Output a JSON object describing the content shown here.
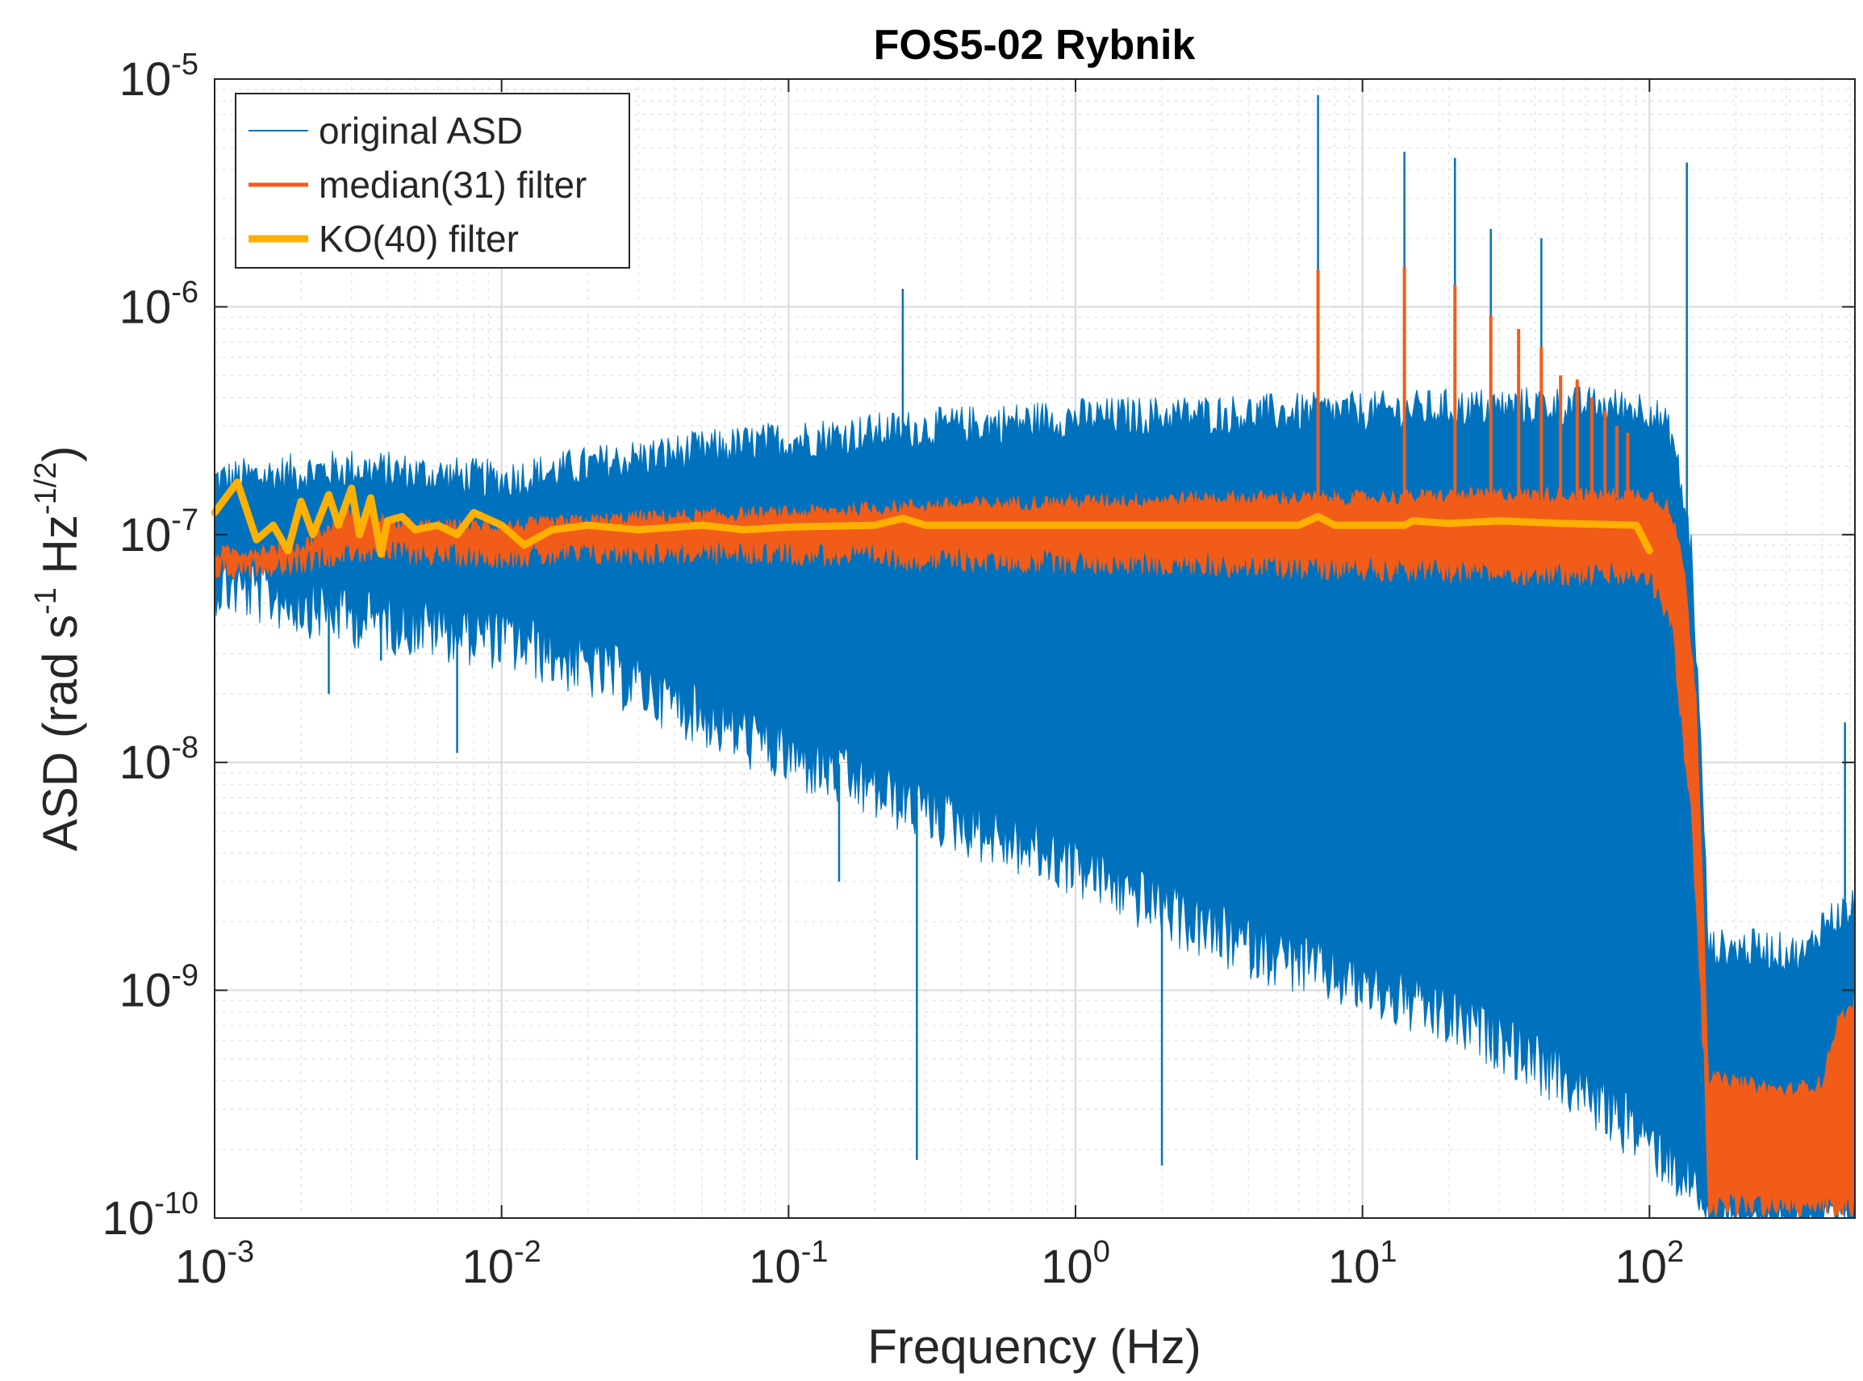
{
  "chart_data": {
    "type": "line",
    "title": "FOS5-02 Rybnik",
    "xlabel": "Frequency (Hz)",
    "ylabel": {
      "prefix": "ASD (rad s",
      "exp1": "-1",
      "mid": " Hz",
      "exp2": "-1/2",
      "suffix": ")"
    },
    "x_scale": "log",
    "y_scale": "log",
    "xlim": [
      0.001,
      520
    ],
    "ylim": [
      1e-10,
      1e-05
    ],
    "grid": true,
    "legend_position": "top-left",
    "x_ticks": [
      {
        "value": 0.001,
        "base": "10",
        "exp": "-3"
      },
      {
        "value": 0.01,
        "base": "10",
        "exp": "-2"
      },
      {
        "value": 0.1,
        "base": "10",
        "exp": "-1"
      },
      {
        "value": 1,
        "base": "10",
        "exp": "0"
      },
      {
        "value": 10,
        "base": "10",
        "exp": "1"
      },
      {
        "value": 100,
        "base": "10",
        "exp": "2"
      }
    ],
    "y_ticks": [
      {
        "value": 1e-10,
        "base": "10",
        "exp": "-10"
      },
      {
        "value": 1e-09,
        "base": "10",
        "exp": "-9"
      },
      {
        "value": 1e-08,
        "base": "10",
        "exp": "-8"
      },
      {
        "value": 1e-07,
        "base": "10",
        "exp": "-7"
      },
      {
        "value": 1e-06,
        "base": "10",
        "exp": "-6"
      },
      {
        "value": 1e-05,
        "base": "10",
        "exp": "-5"
      }
    ],
    "series": [
      {
        "name": "original ASD",
        "color": "#0072BD",
        "style": "band",
        "upper": [
          [
            0.001,
            1.6e-07
          ],
          [
            0.003,
            1.8e-07
          ],
          [
            0.01,
            1.6e-07
          ],
          [
            0.03,
            2e-07
          ],
          [
            0.1,
            2.4e-07
          ],
          [
            0.3,
            2.7e-07
          ],
          [
            1,
            3e-07
          ],
          [
            3,
            3.1e-07
          ],
          [
            10,
            3.2e-07
          ],
          [
            50,
            3.4e-07
          ],
          [
            100,
            3.3e-07
          ],
          [
            120,
            2.5e-07
          ],
          [
            140,
            8e-08
          ],
          [
            155,
            5e-09
          ],
          [
            160,
            1.4e-09
          ],
          [
            250,
            1.4e-09
          ],
          [
            350,
            1.3e-09
          ],
          [
            400,
            1.8e-09
          ],
          [
            520,
            2.1e-09
          ]
        ],
        "lower": [
          [
            0.001,
            7e-08
          ],
          [
            0.003,
            5e-08
          ],
          [
            0.01,
            4e-08
          ],
          [
            0.03,
            2.5e-08
          ],
          [
            0.1,
            1.2e-08
          ],
          [
            0.3,
            7e-09
          ],
          [
            1,
            4e-09
          ],
          [
            3,
            2e-09
          ],
          [
            10,
            1.2e-09
          ],
          [
            30,
            7e-10
          ],
          [
            60,
            4e-10
          ],
          [
            100,
            2.5e-10
          ],
          [
            150,
            1.5e-10
          ],
          [
            160,
            1e-10
          ],
          [
            520,
            1e-10
          ]
        ],
        "spikes": [
          [
            0.0025,
            2e-08
          ],
          [
            0.0038,
            2.8e-08
          ],
          [
            0.007,
            1.1e-08
          ],
          [
            0.25,
            1.2e-06
          ],
          [
            0.28,
            1.8e-10
          ],
          [
            7,
            8.5e-06
          ],
          [
            14,
            4.8e-06
          ],
          [
            21,
            4.5e-06
          ],
          [
            28,
            2.2e-06
          ],
          [
            42,
            2e-06
          ],
          [
            135,
            4.3e-06
          ],
          [
            0.15,
            3e-09
          ],
          [
            2,
            1.7e-10
          ],
          [
            480,
            1.5e-08
          ]
        ]
      },
      {
        "name": "median(31) filter",
        "color": "#F25C19",
        "style": "band",
        "upper": [
          [
            0.001,
            8e-08
          ],
          [
            0.002,
            8.5e-08
          ],
          [
            0.003,
            1.2e-07
          ],
          [
            0.005,
            1.05e-07
          ],
          [
            0.01,
            1.05e-07
          ],
          [
            0.03,
            1.15e-07
          ],
          [
            0.1,
            1.2e-07
          ],
          [
            0.3,
            1.3e-07
          ],
          [
            1,
            1.35e-07
          ],
          [
            3,
            1.4e-07
          ],
          [
            10,
            1.4e-07
          ],
          [
            30,
            1.45e-07
          ],
          [
            100,
            1.45e-07
          ],
          [
            115,
            1.3e-07
          ],
          [
            130,
            8e-08
          ],
          [
            145,
            2e-08
          ],
          [
            155,
            2e-09
          ],
          [
            160,
            4e-10
          ],
          [
            300,
            3.5e-10
          ],
          [
            400,
            3.8e-10
          ],
          [
            450,
            7e-10
          ],
          [
            520,
            8.5e-10
          ]
        ],
        "lower": [
          [
            0.001,
            7.5e-08
          ],
          [
            0.002,
            8e-08
          ],
          [
            0.003,
            9e-08
          ],
          [
            0.01,
            8.5e-08
          ],
          [
            0.03,
            8.8e-08
          ],
          [
            0.1,
            8.8e-08
          ],
          [
            0.3,
            8.2e-08
          ],
          [
            1,
            8e-08
          ],
          [
            3,
            7.8e-08
          ],
          [
            10,
            7.5e-08
          ],
          [
            30,
            7.2e-08
          ],
          [
            100,
            7e-08
          ],
          [
            120,
            4e-08
          ],
          [
            140,
            6e-09
          ],
          [
            155,
            5e-10
          ],
          [
            160,
            1.2e-10
          ],
          [
            520,
            1.2e-10
          ]
        ],
        "spikes": [
          [
            7,
            1.45e-06
          ],
          [
            14,
            1.5e-06
          ],
          [
            21,
            1.25e-06
          ],
          [
            28,
            9.2e-07
          ],
          [
            35,
            8e-07
          ],
          [
            42,
            6.7e-07
          ],
          [
            49,
            5e-07
          ],
          [
            56,
            4.8e-07
          ],
          [
            63,
            4e-07
          ],
          [
            70,
            3.5e-07
          ],
          [
            77,
            3e-07
          ],
          [
            84,
            2.8e-07
          ]
        ]
      },
      {
        "name": "KO(40) filter",
        "color": "#FFB000",
        "style": "line",
        "points": [
          [
            0.001,
            1.25e-07
          ],
          [
            0.0012,
            1.7e-07
          ],
          [
            0.0014,
            9.5e-08
          ],
          [
            0.0016,
            1.1e-07
          ],
          [
            0.0018,
            8.5e-08
          ],
          [
            0.002,
            1.4e-07
          ],
          [
            0.0022,
            1e-07
          ],
          [
            0.0025,
            1.5e-07
          ],
          [
            0.0027,
            1.1e-07
          ],
          [
            0.003,
            1.6e-07
          ],
          [
            0.0032,
            1e-07
          ],
          [
            0.0035,
            1.45e-07
          ],
          [
            0.0038,
            8.2e-08
          ],
          [
            0.004,
            1.15e-07
          ],
          [
            0.0045,
            1.2e-07
          ],
          [
            0.005,
            1.05e-07
          ],
          [
            0.006,
            1.1e-07
          ],
          [
            0.007,
            1e-07
          ],
          [
            0.008,
            1.25e-07
          ],
          [
            0.01,
            1.1e-07
          ],
          [
            0.012,
            9e-08
          ],
          [
            0.015,
            1.05e-07
          ],
          [
            0.02,
            1.1e-07
          ],
          [
            0.03,
            1.05e-07
          ],
          [
            0.05,
            1.1e-07
          ],
          [
            0.07,
            1.05e-07
          ],
          [
            0.1,
            1.08e-07
          ],
          [
            0.2,
            1.1e-07
          ],
          [
            0.25,
            1.18e-07
          ],
          [
            0.3,
            1.1e-07
          ],
          [
            0.5,
            1.1e-07
          ],
          [
            1,
            1.1e-07
          ],
          [
            3,
            1.1e-07
          ],
          [
            6,
            1.1e-07
          ],
          [
            7,
            1.2e-07
          ],
          [
            8,
            1.1e-07
          ],
          [
            14,
            1.1e-07
          ],
          [
            15,
            1.15e-07
          ],
          [
            20,
            1.12e-07
          ],
          [
            30,
            1.15e-07
          ],
          [
            50,
            1.12e-07
          ],
          [
            90,
            1.1e-07
          ],
          [
            100,
            8.5e-08
          ]
        ]
      }
    ]
  }
}
